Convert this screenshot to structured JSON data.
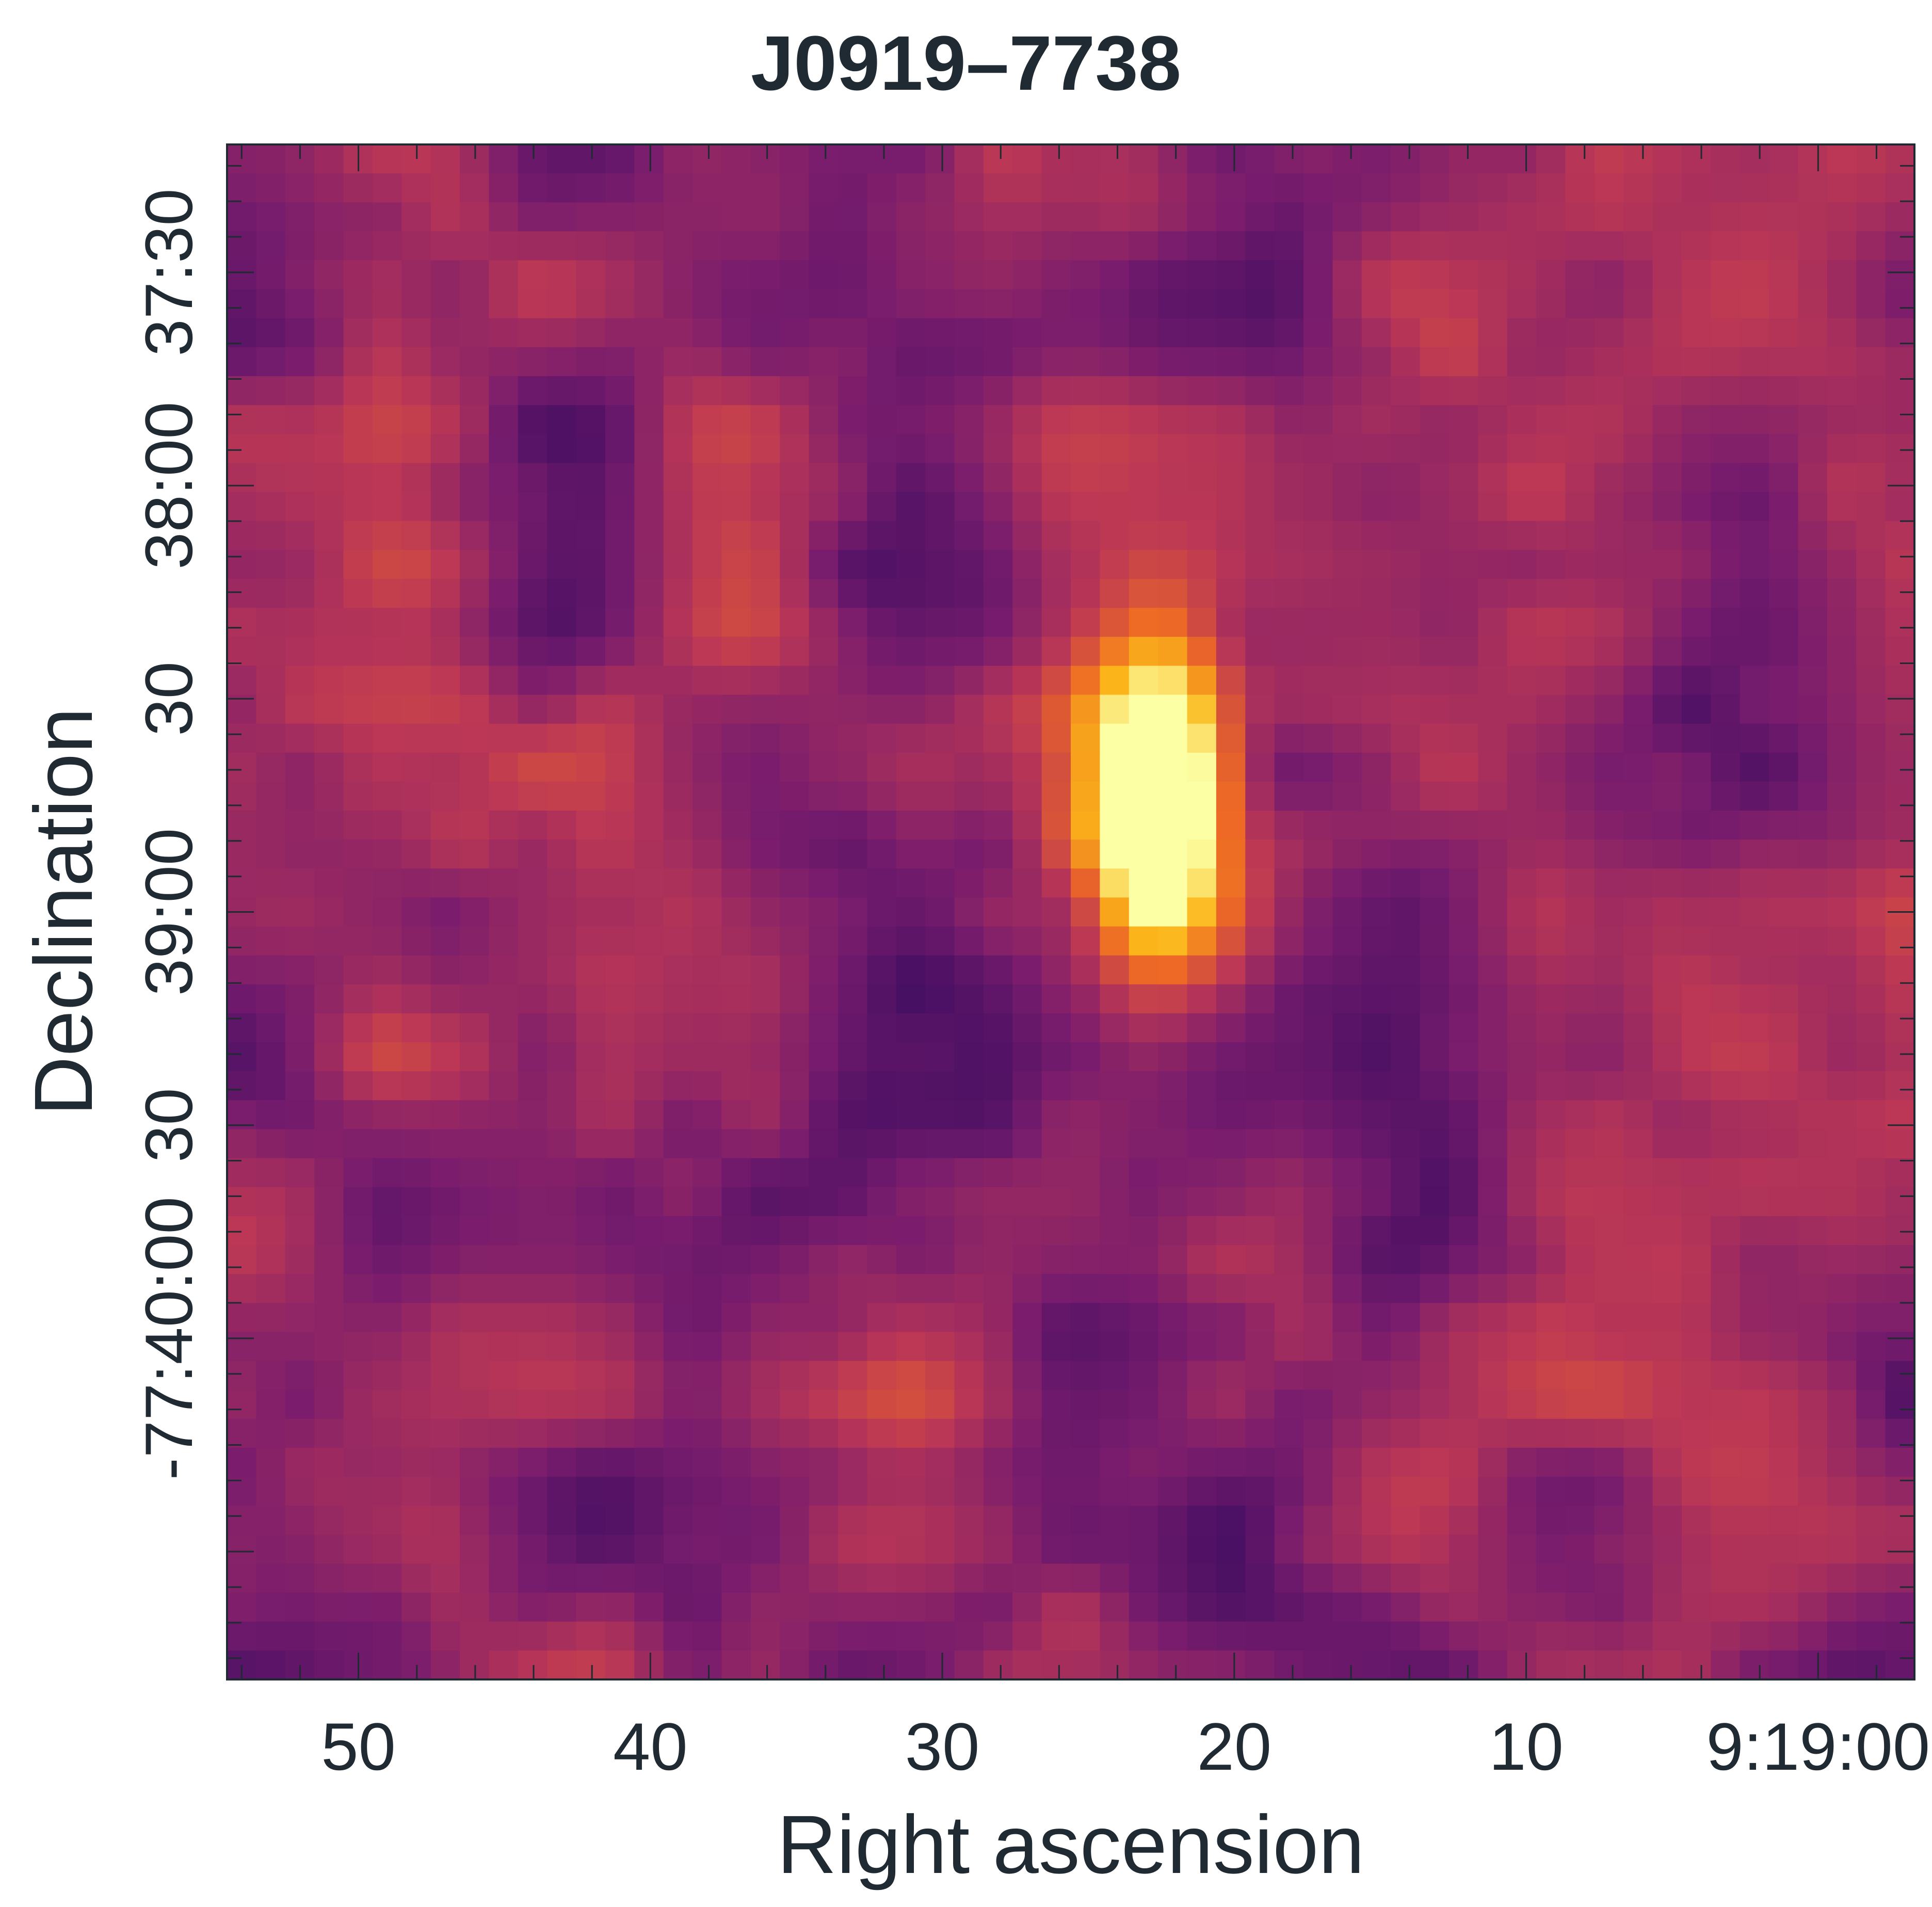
{
  "chart_data": {
    "type": "heatmap",
    "title": "J0919–7738",
    "xlabel": "Right ascension",
    "ylabel": "Declination",
    "colormap": "inferno",
    "colormap_stops": [
      "#000004",
      "#320a5e",
      "#781c6d",
      "#bb3755",
      "#ed6925",
      "#fbb61a",
      "#fcffa4"
    ],
    "x_axis": {
      "unit": "RA seconds past 9:19:00",
      "range": [
        54.5,
        -3.3
      ],
      "reversed": true,
      "major_ticks": [
        50,
        40,
        30,
        20,
        10,
        0
      ],
      "tick_labels": [
        "50",
        "40",
        "30",
        "20",
        "10",
        "9:19:00"
      ],
      "minor_tick_step": 2
    },
    "y_axis": {
      "unit": "Dec arcsec below -77:37:00",
      "range": [
        228,
        12
      ],
      "major_ticks": [
        30,
        60,
        90,
        120,
        150,
        180,
        210
      ],
      "tick_labels": [
        "37:30",
        "38:00",
        "30",
        "39:00",
        "30",
        "-77:40:00",
        ""
      ],
      "minor_tick_step": 5
    },
    "grid": false,
    "sources": [
      {
        "ra_s": 22.6,
        "dec_s": 103.0,
        "amp": 1.0,
        "sx": 1.3,
        "sy": 12.0,
        "peak": true
      }
    ]
  }
}
